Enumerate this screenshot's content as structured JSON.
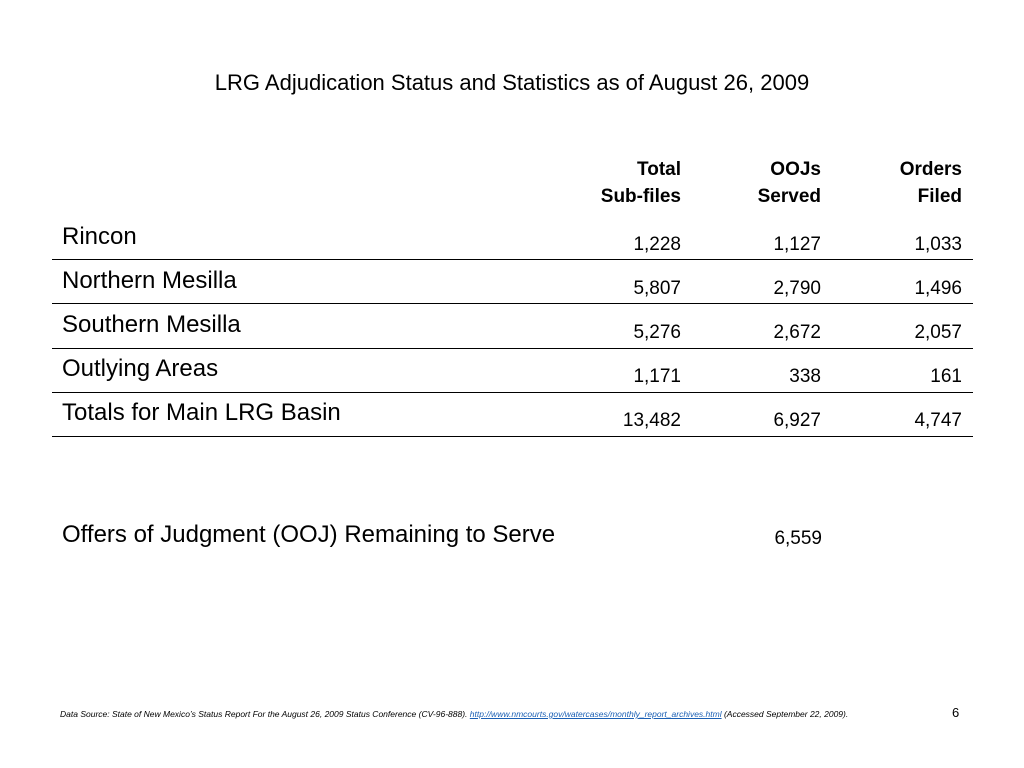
{
  "title": "LRG Adjudication Status and Statistics as of August 26, 2009",
  "columns": [
    {
      "line1": "Total",
      "line2": "Sub-files"
    },
    {
      "line1": "OOJs",
      "line2": "Served"
    },
    {
      "line1": "Orders",
      "line2": "Filed"
    }
  ],
  "rows": [
    {
      "name": "Rincon",
      "values": [
        "1,228",
        "1,127",
        "1,033"
      ]
    },
    {
      "name": "Northern Mesilla",
      "values": [
        "5,807",
        "2,790",
        "1,496"
      ]
    },
    {
      "name": "Southern Mesilla",
      "values": [
        "5,276",
        "2,672",
        "2,057"
      ]
    },
    {
      "name": "Outlying Areas",
      "values": [
        "1,171",
        "338",
        "161"
      ]
    },
    {
      "name": "Totals for Main LRG Basin",
      "values": [
        "13,482",
        "6,927",
        "4,747"
      ]
    }
  ],
  "ooj_remaining": {
    "label": "Offers of Judgment (OOJ) Remaining to Serve",
    "value": "6,559"
  },
  "footer": {
    "source_text": "Data Source: State of New Mexico’s Status Report For the August 26, 2009 Status Conference (CV-96-888). ",
    "link_text": "http://www.nmcourts.gov/watercases/monthly_report_archives.html",
    "accessed_text": " (Accessed September 22, 2009)."
  },
  "page_number": "6"
}
